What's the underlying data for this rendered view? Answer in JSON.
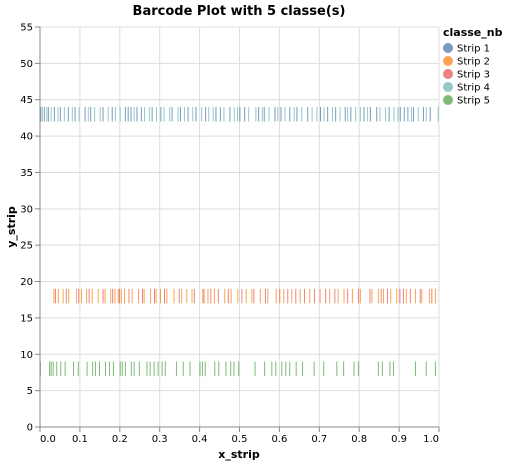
{
  "chart_data": {
    "type": "barcode",
    "title": "Barcode Plot with 5 classe(s)",
    "xlabel": "x_strip",
    "ylabel": "y_strip",
    "xlim": [
      0,
      1
    ],
    "ylim": [
      0,
      55
    ],
    "x_ticks": [
      "0.0",
      "0.1",
      "0.2",
      "0.3",
      "0.4",
      "0.5",
      "0.6",
      "0.7",
      "0.8",
      "0.9",
      "1.0"
    ],
    "y_ticks": [
      "0",
      "5",
      "10",
      "15",
      "20",
      "25",
      "30",
      "35",
      "40",
      "45",
      "50",
      "55"
    ],
    "grid": true,
    "legend": {
      "title": "classe_nb",
      "position": "top-right",
      "items": [
        {
          "name": "Strip 1",
          "color": "#4c78a8"
        },
        {
          "name": "Strip 2",
          "color": "#f58518"
        },
        {
          "name": "Strip 3",
          "color": "#e45756"
        },
        {
          "name": "Strip 4",
          "color": "#72b7b2"
        },
        {
          "name": "Strip 5",
          "color": "#54a24b"
        }
      ]
    },
    "series": [
      {
        "name": "Strip 1",
        "color": "#4c78a8",
        "y_range": [
          42,
          44
        ],
        "x": [
          0.002,
          0.011,
          0.021,
          0.036,
          0.051,
          0.071,
          0.088,
          0.113,
          0.127,
          0.158,
          0.181,
          0.214,
          0.221,
          0.228,
          0.243,
          0.254,
          0.281,
          0.303,
          0.331,
          0.352,
          0.371,
          0.391,
          0.415,
          0.441,
          0.452,
          0.476,
          0.501,
          0.513,
          0.548,
          0.562,
          0.589,
          0.604,
          0.626,
          0.644,
          0.671,
          0.703,
          0.721,
          0.741,
          0.765,
          0.779,
          0.812,
          0.828,
          0.844,
          0.875,
          0.903,
          0.913,
          0.922,
          0.936,
          0.961,
          0.978
        ]
      },
      {
        "name": "Strip 4",
        "color": "#72b7b2",
        "y_range": [
          42,
          44
        ],
        "x": [
          0.006,
          0.017,
          0.028,
          0.045,
          0.061,
          0.081,
          0.098,
          0.121,
          0.137,
          0.151,
          0.171,
          0.189,
          0.201,
          0.236,
          0.262,
          0.274,
          0.292,
          0.311,
          0.325,
          0.346,
          0.362,
          0.383,
          0.405,
          0.423,
          0.434,
          0.461,
          0.487,
          0.495,
          0.523,
          0.541,
          0.557,
          0.574,
          0.596,
          0.614,
          0.637,
          0.656,
          0.682,
          0.694,
          0.712,
          0.733,
          0.752,
          0.771,
          0.791,
          0.803,
          0.821,
          0.852,
          0.866,
          0.887,
          0.897,
          0.931,
          0.948,
          0.968,
          0.998
        ]
      },
      {
        "name": "Strip 2",
        "color": "#f58518",
        "y_range": [
          17,
          19
        ],
        "x": [
          0.035,
          0.046,
          0.058,
          0.072,
          0.091,
          0.104,
          0.117,
          0.131,
          0.146,
          0.163,
          0.177,
          0.188,
          0.196,
          0.204,
          0.212,
          0.231,
          0.247,
          0.261,
          0.277,
          0.291,
          0.302,
          0.318,
          0.336,
          0.355,
          0.368,
          0.381,
          0.408,
          0.421,
          0.437,
          0.463,
          0.479,
          0.496,
          0.517,
          0.531,
          0.552,
          0.571,
          0.592,
          0.611,
          0.631,
          0.652,
          0.676,
          0.702,
          0.726,
          0.747,
          0.762,
          0.783,
          0.803,
          0.832,
          0.848,
          0.861,
          0.879,
          0.894,
          0.918,
          0.941,
          0.957,
          0.976,
          0.991
        ]
      },
      {
        "name": "Strip 3",
        "color": "#e45756",
        "y_range": [
          17,
          19
        ],
        "x": [
          0.039,
          0.066,
          0.097,
          0.123,
          0.158,
          0.182,
          0.199,
          0.223,
          0.257,
          0.287,
          0.312,
          0.349,
          0.387,
          0.411,
          0.428,
          0.447,
          0.472,
          0.506,
          0.536,
          0.565,
          0.601,
          0.621,
          0.641,
          0.663,
          0.688,
          0.716,
          0.739,
          0.771,
          0.798,
          0.827,
          0.855,
          0.871,
          0.902,
          0.911,
          0.928,
          0.953,
          0.982
        ]
      },
      {
        "name": "Strip 5",
        "color": "#54a24b",
        "y_range": [
          7,
          9
        ],
        "x": [
          0.001,
          0.024,
          0.028,
          0.033,
          0.042,
          0.052,
          0.063,
          0.084,
          0.096,
          0.118,
          0.132,
          0.139,
          0.149,
          0.164,
          0.174,
          0.184,
          0.201,
          0.206,
          0.214,
          0.229,
          0.236,
          0.249,
          0.268,
          0.276,
          0.286,
          0.296,
          0.306,
          0.314,
          0.342,
          0.359,
          0.376,
          0.401,
          0.407,
          0.414,
          0.438,
          0.448,
          0.466,
          0.478,
          0.486,
          0.498,
          0.539,
          0.563,
          0.581,
          0.591,
          0.606,
          0.616,
          0.626,
          0.642,
          0.658,
          0.687,
          0.711,
          0.744,
          0.761,
          0.787,
          0.798,
          0.848,
          0.858,
          0.877,
          0.886,
          0.941,
          0.968,
          0.991
        ]
      }
    ]
  }
}
